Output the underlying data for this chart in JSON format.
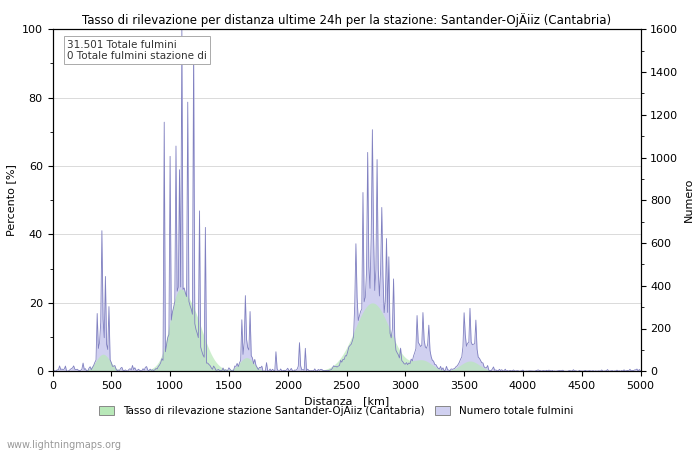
{
  "title": "Tasso di rilevazione per distanza ultime 24h per la stazione: Santander-OjÄiiz (Cantabria)",
  "xlabel": "Distanza   [km]",
  "ylabel_left": "Percento [%]",
  "ylabel_right": "Numero",
  "annotation": "31.501 Totale fulmini\n0 Totale fulmini stazione di",
  "legend_green": "Tasso di rilevazione stazione Santander-OjÄiiz (Cantabria)",
  "legend_blue": "Numero totale fulmini",
  "footer": "www.lightningmaps.org",
  "xlim": [
    0,
    5000
  ],
  "ylim_left": [
    0,
    100
  ],
  "ylim_right": [
    0,
    1600
  ],
  "green_color": "#b8e8b8",
  "blue_color": "#d0d0f0",
  "line_color": "#8080c0",
  "grid_color": "#cccccc"
}
